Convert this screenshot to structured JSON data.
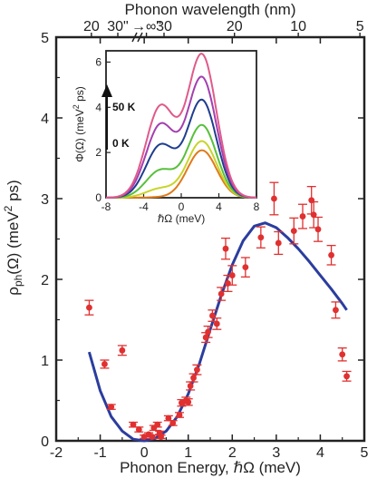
{
  "chart_data": [
    {
      "type": "scatter",
      "xlabel": "Phonon Energy, ℏΩ (meV)",
      "ylabel": "ρ",
      "ylabel_sub": "ph",
      "ylabel_tail": "(Ω) (meV",
      "ylabel_sup": "2",
      "ylabel_end": " ps)",
      "top_axis_label": "Phonon wavelength (nm)",
      "xlim": [
        -2,
        5
      ],
      "ylim": [
        0,
        5
      ],
      "xticks": [
        "-2",
        "-1",
        "0",
        "1",
        "2",
        "3",
        "4",
        "5"
      ],
      "yticks": [
        "0",
        "1",
        "2",
        "3",
        "4",
        "5"
      ],
      "top_ticks": [
        {
          "label": "20",
          "x": -1.2
        },
        {
          "label": "30\"",
          "x": -0.6
        },
        {
          "label": "→∞\"",
          "x": 0.05
        },
        {
          "label": "30",
          "x": 0.45
        },
        {
          "label": "20",
          "x": 2.05
        },
        {
          "label": "10",
          "x": 3.5
        },
        {
          "label": "5",
          "x": 4.9
        }
      ],
      "colors": {
        "points": "#e03030",
        "fit": "#2b3d9e",
        "axis": "#222222"
      },
      "series": [
        {
          "kind": "points_with_error",
          "points": [
            {
              "x": -1.25,
              "y": 1.65,
              "err": 0.09
            },
            {
              "x": -0.9,
              "y": 0.95,
              "err": 0.05
            },
            {
              "x": -0.75,
              "y": 0.42,
              "err": 0.03
            },
            {
              "x": -0.5,
              "y": 1.12,
              "err": 0.06
            },
            {
              "x": -0.25,
              "y": 0.2,
              "err": 0.03
            },
            {
              "x": -0.12,
              "y": 0.14,
              "err": 0.03
            },
            {
              "x": 0.0,
              "y": 0.05,
              "err": 0.02
            },
            {
              "x": 0.1,
              "y": 0.08,
              "err": 0.02
            },
            {
              "x": 0.18,
              "y": 0.05,
              "err": 0.02
            },
            {
              "x": 0.22,
              "y": 0.16,
              "err": 0.03
            },
            {
              "x": 0.3,
              "y": 0.2,
              "err": 0.03
            },
            {
              "x": 0.35,
              "y": 0.1,
              "err": 0.02
            },
            {
              "x": 0.38,
              "y": 0.05,
              "err": 0.02
            },
            {
              "x": 0.55,
              "y": 0.28,
              "err": 0.03
            },
            {
              "x": 0.65,
              "y": 0.22,
              "err": 0.03
            },
            {
              "x": 0.8,
              "y": 0.32,
              "err": 0.03
            },
            {
              "x": 0.85,
              "y": 0.47,
              "err": 0.04
            },
            {
              "x": 0.95,
              "y": 0.5,
              "err": 0.04
            },
            {
              "x": 1.0,
              "y": 0.48,
              "err": 0.04
            },
            {
              "x": 1.05,
              "y": 0.68,
              "err": 0.05
            },
            {
              "x": 1.12,
              "y": 0.78,
              "err": 0.05
            },
            {
              "x": 1.2,
              "y": 0.88,
              "err": 0.06
            },
            {
              "x": 1.4,
              "y": 1.28,
              "err": 0.06
            },
            {
              "x": 1.45,
              "y": 1.35,
              "err": 0.07
            },
            {
              "x": 1.55,
              "y": 1.55,
              "err": 0.07
            },
            {
              "x": 1.65,
              "y": 1.45,
              "err": 0.07
            },
            {
              "x": 1.75,
              "y": 1.82,
              "err": 0.08
            },
            {
              "x": 1.85,
              "y": 2.38,
              "err": 0.13
            },
            {
              "x": 1.9,
              "y": 1.95,
              "err": 0.1
            },
            {
              "x": 2.0,
              "y": 2.05,
              "err": 0.12
            },
            {
              "x": 2.3,
              "y": 2.15,
              "err": 0.12
            },
            {
              "x": 2.65,
              "y": 2.52,
              "err": 0.13
            },
            {
              "x": 2.95,
              "y": 3.0,
              "err": 0.2
            },
            {
              "x": 3.05,
              "y": 2.45,
              "err": 0.14
            },
            {
              "x": 3.4,
              "y": 2.6,
              "err": 0.16
            },
            {
              "x": 3.6,
              "y": 2.78,
              "err": 0.15
            },
            {
              "x": 3.8,
              "y": 2.98,
              "err": 0.17
            },
            {
              "x": 3.85,
              "y": 2.8,
              "err": 0.16
            },
            {
              "x": 3.95,
              "y": 2.62,
              "err": 0.15
            },
            {
              "x": 4.25,
              "y": 2.3,
              "err": 0.12
            },
            {
              "x": 4.35,
              "y": 1.62,
              "err": 0.1
            },
            {
              "x": 4.5,
              "y": 1.07,
              "err": 0.08
            },
            {
              "x": 4.6,
              "y": 0.8,
              "err": 0.06
            }
          ]
        },
        {
          "kind": "fit_line",
          "x": [
            -1.25,
            -1.0,
            -0.75,
            -0.5,
            -0.25,
            0.0,
            0.25,
            0.5,
            0.75,
            1.0,
            1.25,
            1.5,
            1.75,
            2.0,
            2.25,
            2.5,
            2.75,
            3.0,
            3.25,
            3.5,
            3.75,
            4.0,
            4.25,
            4.5,
            4.6
          ],
          "y": [
            1.1,
            0.62,
            0.3,
            0.12,
            0.02,
            0.0,
            0.03,
            0.12,
            0.3,
            0.58,
            0.95,
            1.38,
            1.8,
            2.18,
            2.48,
            2.66,
            2.7,
            2.64,
            2.52,
            2.38,
            2.22,
            2.05,
            1.88,
            1.7,
            1.62
          ]
        }
      ]
    },
    {
      "type": "line",
      "xlabel": "ℏΩ (meV)",
      "ylabel": "Φ(Ω) (meV",
      "ylabel_sup": "2",
      "ylabel_end": " ps)",
      "xlim": [
        -8,
        8
      ],
      "ylim": [
        0,
        6.5
      ],
      "xticks": [
        "-8",
        "-4",
        "0",
        "4",
        "8"
      ],
      "yticks": [
        "0",
        "2",
        "4",
        "6"
      ],
      "annotations": {
        "top": "50 K",
        "bottom": "0 K"
      },
      "series": [
        {
          "color": "#e07a1a",
          "peak_pos": 2.1,
          "peak_neg": 0.02
        },
        {
          "color": "#c9d42a",
          "peak_pos": 2.5,
          "peak_neg": 0.4
        },
        {
          "color": "#58bf3c",
          "peak_pos": 3.2,
          "peak_neg": 1.2
        },
        {
          "color": "#1f3d8f",
          "peak_pos": 4.3,
          "peak_neg": 2.3
        },
        {
          "color": "#a33fb0",
          "peak_pos": 5.3,
          "peak_neg": 3.2
        },
        {
          "color": "#e05a8a",
          "peak_pos": 6.3,
          "peak_neg": 4.0
        }
      ]
    }
  ]
}
